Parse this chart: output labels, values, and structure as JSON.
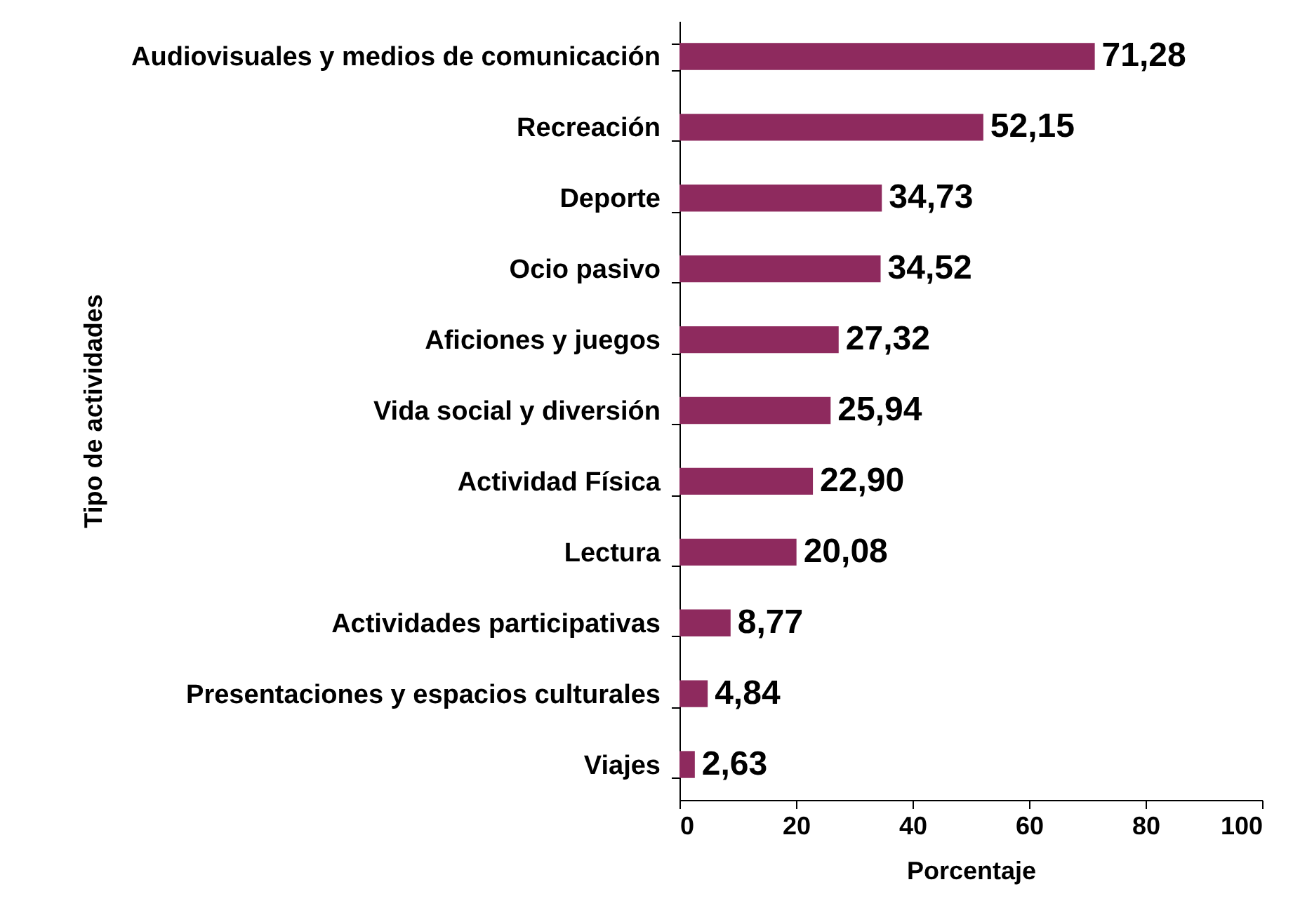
{
  "chart_data": {
    "type": "bar",
    "orientation": "horizontal",
    "xlabel": "Porcentaje",
    "ylabel": "Tipo de actividades",
    "categories": [
      "Audiovisuales y medios de comunicación",
      "Recreación",
      "Deporte",
      "Ocio pasivo",
      "Aficiones y juegos",
      "Vida social y diversión",
      "Actividad Física",
      "Lectura",
      "Actividades participativas",
      "Presentaciones y espacios culturales",
      "Viajes"
    ],
    "values": [
      71.28,
      52.15,
      34.73,
      34.52,
      27.32,
      25.94,
      22.9,
      20.08,
      8.77,
      4.84,
      2.63
    ],
    "value_labels": [
      "71,28",
      "52,15",
      "34,73",
      "34,52",
      "27,32",
      "25,94",
      "22,90",
      "20,08",
      "8,77",
      "4,84",
      "2,63"
    ],
    "color": "#8e2a5e",
    "xlim": [
      0,
      100
    ],
    "xticks": [
      0,
      20,
      40,
      60,
      80,
      100
    ],
    "grid": false
  }
}
